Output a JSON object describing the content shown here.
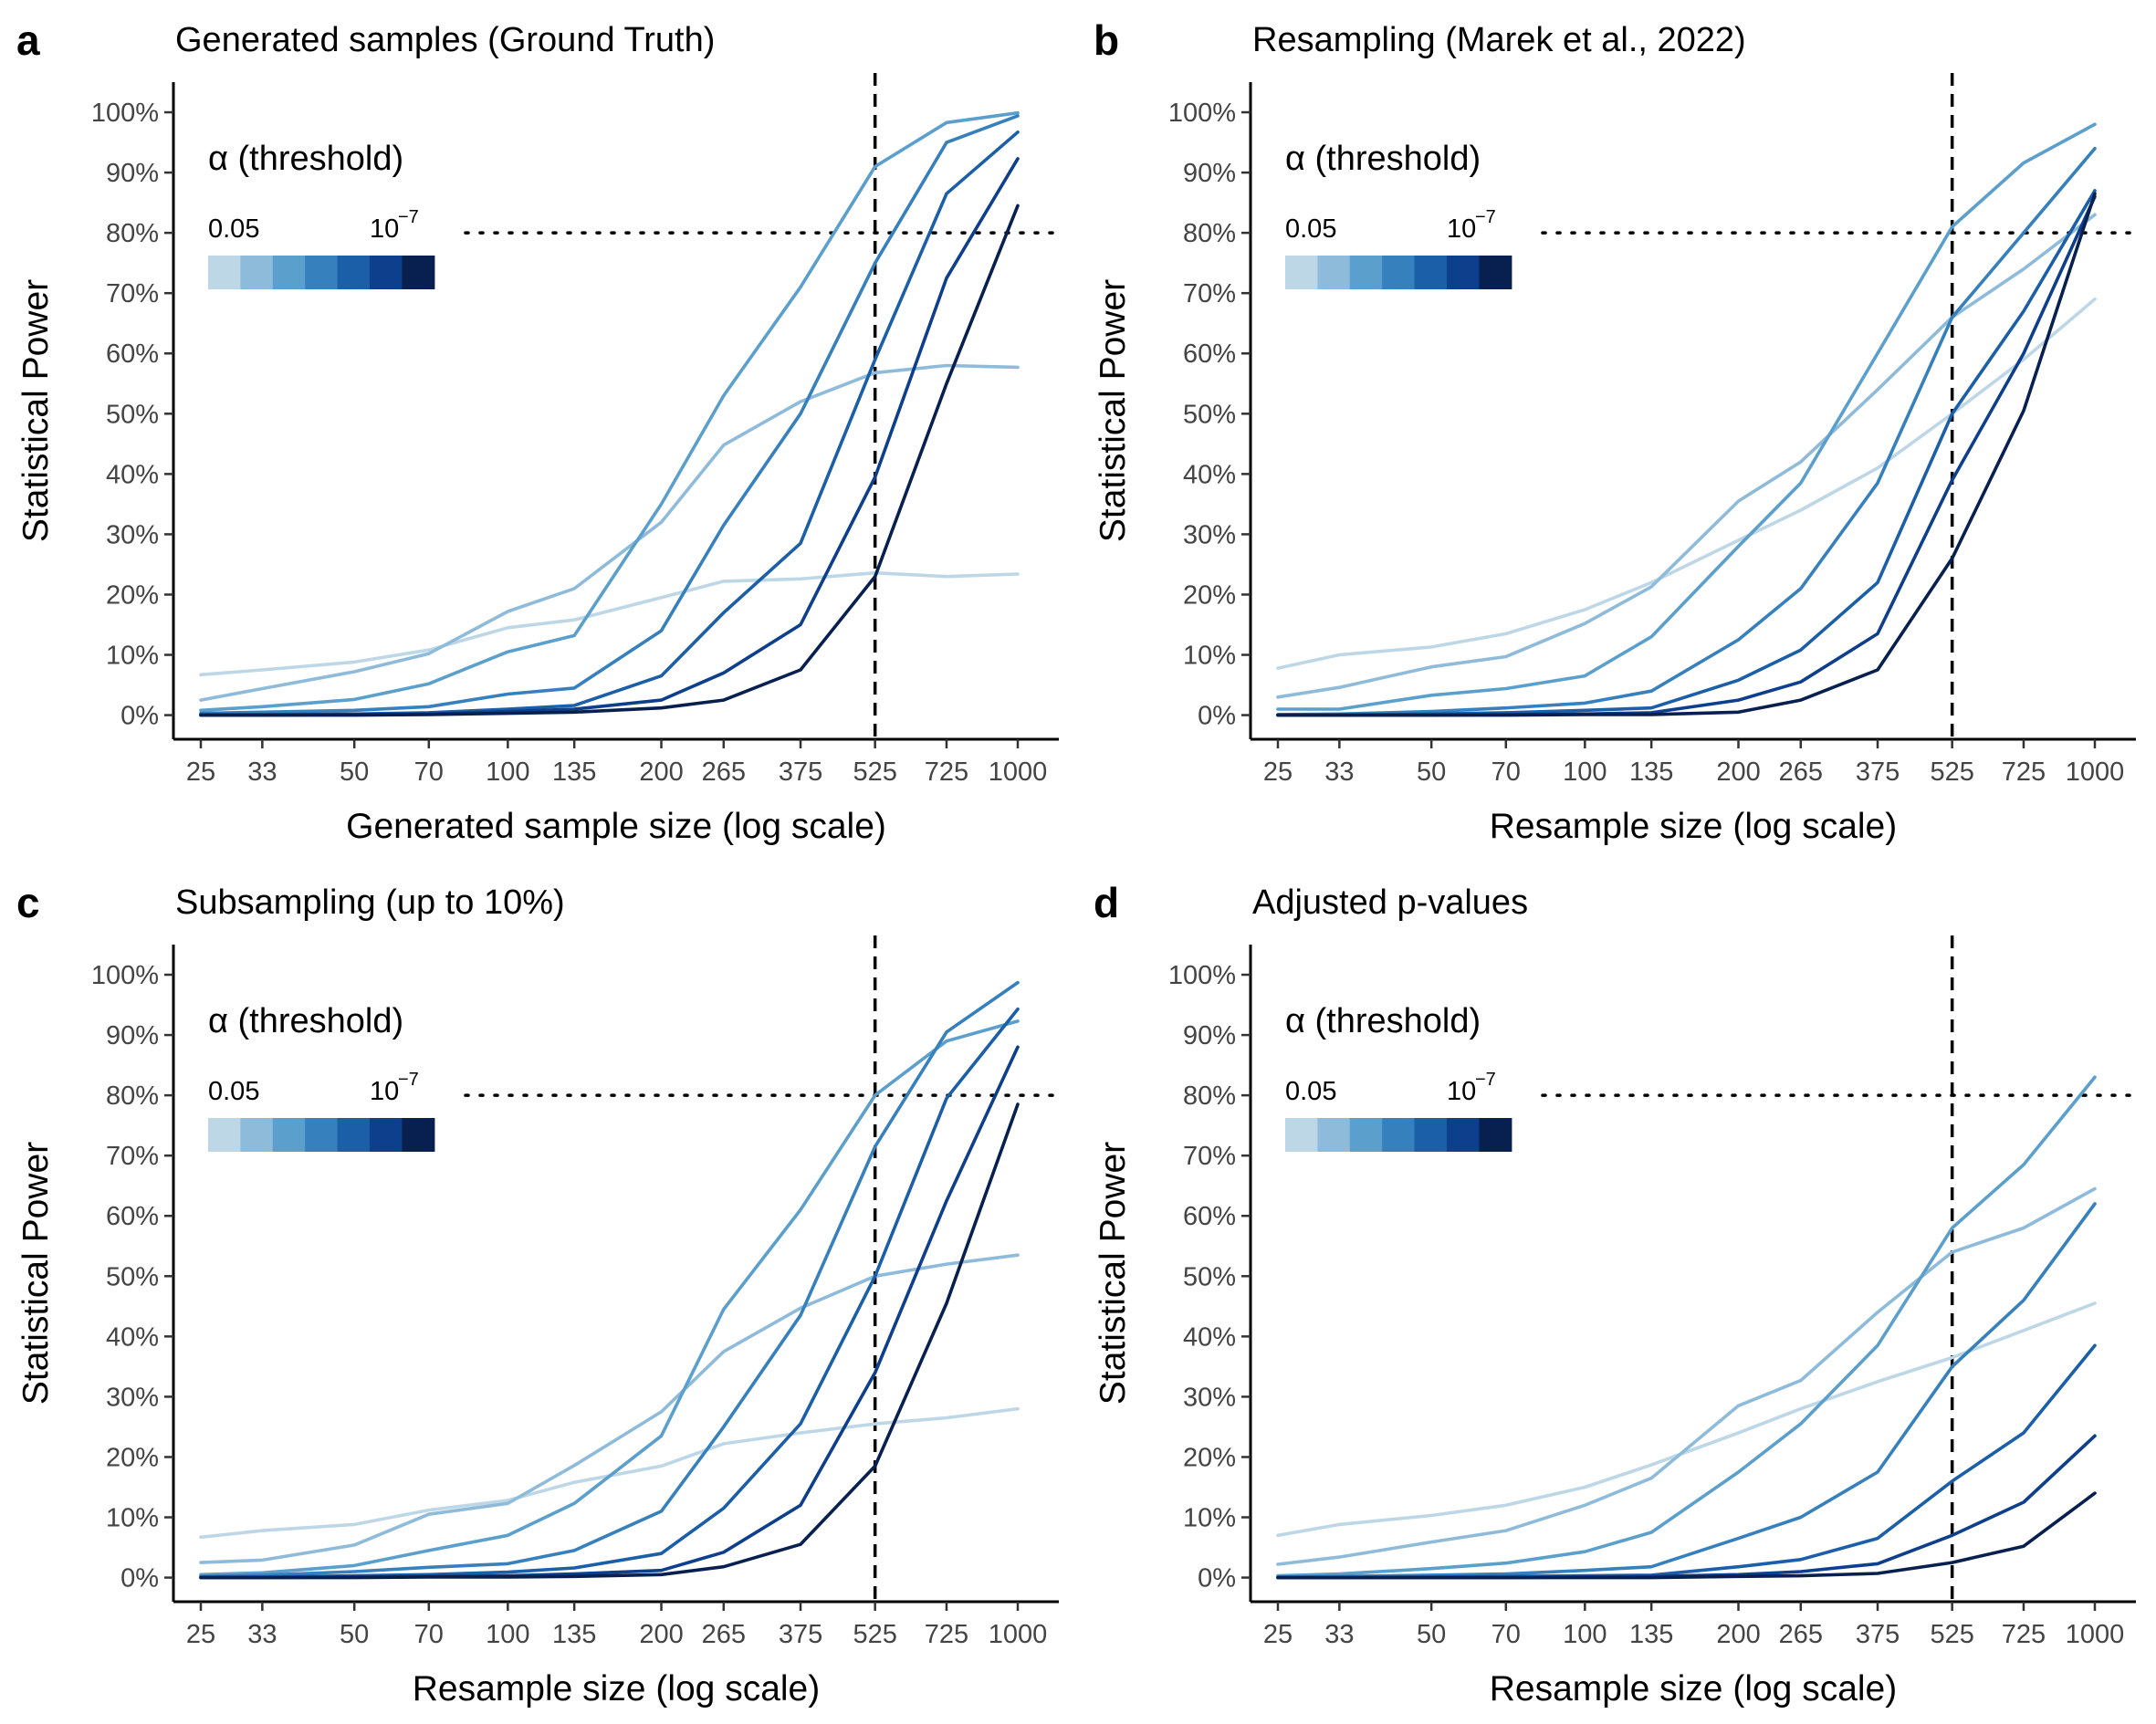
{
  "chart_data": [
    {
      "type": "line",
      "panel_letter": "a",
      "title": "Generated samples (Ground Truth)",
      "xlabel": "Generated sample size (log scale)",
      "ylabel": "Statistical Power",
      "x_scale": "log",
      "x": [
        25,
        33,
        50,
        70,
        100,
        135,
        200,
        265,
        375,
        525,
        725,
        1000
      ],
      "x_tick_labels": [
        "25",
        "33",
        "50",
        "70",
        "100",
        "135",
        "200",
        "265",
        "375",
        "525",
        "725",
        "1000"
      ],
      "y_ticks": [
        0,
        10,
        20,
        30,
        40,
        50,
        60,
        70,
        80,
        90,
        100
      ],
      "y_tick_labels": [
        "0%",
        "10%",
        "20%",
        "30%",
        "40%",
        "50%",
        "60%",
        "70%",
        "80%",
        "90%",
        "100%"
      ],
      "ylim": [
        -4,
        105
      ],
      "reference_lines": {
        "vertical_x": 525,
        "horizontal_y": 80
      },
      "legend": {
        "title": "α (threshold)",
        "low_label": "0.05",
        "high_base": "10",
        "high_exp": "−7",
        "placement": "top-left"
      },
      "series": [
        {
          "color": "#bdd7e7",
          "values": [
            6.7,
            7.5,
            8.8,
            10.8,
            14.5,
            15.8,
            19.5,
            22.2,
            22.6,
            23.6,
            23.0,
            23.4
          ]
        },
        {
          "color": "#8fbbda",
          "values": [
            2.5,
            4.4,
            7.2,
            10.2,
            17.2,
            21.0,
            32.0,
            44.8,
            52.0,
            56.8,
            58.0,
            57.7
          ]
        },
        {
          "color": "#5b9fcc",
          "values": [
            0.8,
            1.4,
            2.6,
            5.2,
            10.5,
            13.2,
            35.0,
            53.0,
            71.0,
            91.0,
            98.3,
            99.9
          ]
        },
        {
          "color": "#3680bd",
          "values": [
            0.3,
            0.5,
            0.8,
            1.4,
            3.5,
            4.5,
            14.0,
            31.5,
            50.0,
            75.0,
            95.0,
            99.4
          ]
        },
        {
          "color": "#1b5fa8",
          "values": [
            0.1,
            0.1,
            0.2,
            0.4,
            1.0,
            1.6,
            6.5,
            17.0,
            28.5,
            59.0,
            86.5,
            96.7
          ]
        },
        {
          "color": "#0e3f8c",
          "values": [
            0.0,
            0.0,
            0.1,
            0.2,
            0.6,
            1.0,
            2.5,
            7.0,
            15.0,
            39.5,
            72.5,
            92.3
          ]
        },
        {
          "color": "#08204f",
          "values": [
            0.0,
            0.0,
            0.0,
            0.1,
            0.3,
            0.5,
            1.2,
            2.5,
            7.5,
            23.0,
            55.0,
            84.5
          ]
        }
      ]
    },
    {
      "type": "line",
      "panel_letter": "b",
      "title": "Resampling (Marek et al., 2022)",
      "xlabel": "Resample size (log scale)",
      "ylabel": "Statistical Power",
      "x_scale": "log",
      "x": [
        25,
        33,
        50,
        70,
        100,
        135,
        200,
        265,
        375,
        525,
        725,
        1000
      ],
      "x_tick_labels": [
        "25",
        "33",
        "50",
        "70",
        "100",
        "135",
        "200",
        "265",
        "375",
        "525",
        "725",
        "1000"
      ],
      "y_ticks": [
        0,
        10,
        20,
        30,
        40,
        50,
        60,
        70,
        80,
        90,
        100
      ],
      "y_tick_labels": [
        "0%",
        "10%",
        "20%",
        "30%",
        "40%",
        "50%",
        "60%",
        "70%",
        "80%",
        "90%",
        "100%"
      ],
      "ylim": [
        -4,
        105
      ],
      "reference_lines": {
        "vertical_x": 525,
        "horizontal_y": 80
      },
      "legend": {
        "title": "α (threshold)",
        "low_label": "0.05",
        "high_base": "10",
        "high_exp": "−7",
        "placement": "top-left"
      },
      "series": [
        {
          "color": "#bdd7e7",
          "values": [
            7.8,
            10.0,
            11.3,
            13.5,
            17.5,
            22.0,
            29.0,
            34.0,
            41.0,
            50.0,
            59.0,
            69.0
          ]
        },
        {
          "color": "#8fbbda",
          "values": [
            3.0,
            4.6,
            8.0,
            9.7,
            15.2,
            21.3,
            35.5,
            42.0,
            54.0,
            66.0,
            74.0,
            83.0
          ]
        },
        {
          "color": "#5b9fcc",
          "values": [
            1.0,
            1.0,
            3.3,
            4.4,
            6.5,
            13.0,
            28.0,
            38.5,
            60.0,
            81.0,
            91.6,
            98.0
          ]
        },
        {
          "color": "#3680bd",
          "values": [
            0.1,
            0.2,
            0.6,
            1.2,
            2.0,
            4.0,
            12.5,
            21.0,
            38.5,
            66.0,
            80.0,
            94.0
          ]
        },
        {
          "color": "#1b5fa8",
          "values": [
            0.0,
            0.0,
            0.2,
            0.4,
            0.8,
            1.2,
            5.8,
            10.8,
            22.0,
            50.0,
            67.0,
            87.0
          ]
        },
        {
          "color": "#0e3f8c",
          "values": [
            0.0,
            0.0,
            0.0,
            0.1,
            0.2,
            0.4,
            2.5,
            5.5,
            13.5,
            39.0,
            60.0,
            86.0
          ]
        },
        {
          "color": "#08204f",
          "values": [
            0.0,
            0.0,
            0.0,
            0.0,
            0.1,
            0.1,
            0.5,
            2.5,
            7.5,
            26.0,
            50.5,
            86.5
          ]
        }
      ]
    },
    {
      "type": "line",
      "panel_letter": "c",
      "title": "Subsampling (up to 10%)",
      "xlabel": "Resample size (log scale)",
      "ylabel": "Statistical Power",
      "x_scale": "log",
      "x": [
        25,
        33,
        50,
        70,
        100,
        135,
        200,
        265,
        375,
        525,
        725,
        1000
      ],
      "x_tick_labels": [
        "25",
        "33",
        "50",
        "70",
        "100",
        "135",
        "200",
        "265",
        "375",
        "525",
        "725",
        "1000"
      ],
      "y_ticks": [
        0,
        10,
        20,
        30,
        40,
        50,
        60,
        70,
        80,
        90,
        100
      ],
      "y_tick_labels": [
        "0%",
        "10%",
        "20%",
        "30%",
        "40%",
        "50%",
        "60%",
        "70%",
        "80%",
        "90%",
        "100%"
      ],
      "ylim": [
        -4,
        105
      ],
      "reference_lines": {
        "vertical_x": 525,
        "horizontal_y": 80
      },
      "legend": {
        "title": "α (threshold)",
        "low_label": "0.05",
        "high_base": "10",
        "high_exp": "−7",
        "placement": "top-left"
      },
      "series": [
        {
          "color": "#bdd7e7",
          "values": [
            6.7,
            7.8,
            8.8,
            11.2,
            12.8,
            15.8,
            18.5,
            22.2,
            24.0,
            25.5,
            26.5,
            28.0
          ]
        },
        {
          "color": "#8fbbda",
          "values": [
            2.5,
            2.9,
            5.4,
            10.5,
            12.3,
            18.6,
            27.5,
            37.5,
            44.7,
            50.0,
            52.0,
            53.5
          ]
        },
        {
          "color": "#5b9fcc",
          "values": [
            0.5,
            0.8,
            2.0,
            4.5,
            7.0,
            12.3,
            23.5,
            44.5,
            61.0,
            80.0,
            89.0,
            92.3
          ]
        },
        {
          "color": "#3680bd",
          "values": [
            0.2,
            0.4,
            1.0,
            1.7,
            2.3,
            4.5,
            11.0,
            25.0,
            43.5,
            71.5,
            90.5,
            98.7
          ]
        },
        {
          "color": "#1b5fa8",
          "values": [
            0.1,
            0.1,
            0.3,
            0.5,
            0.9,
            1.6,
            4.0,
            11.5,
            25.5,
            50.0,
            79.5,
            94.3
          ]
        },
        {
          "color": "#0e3f8c",
          "values": [
            0.0,
            0.0,
            0.1,
            0.2,
            0.3,
            0.6,
            1.2,
            4.2,
            12.0,
            34.0,
            62.5,
            88.0
          ]
        },
        {
          "color": "#08204f",
          "values": [
            0.0,
            0.0,
            0.0,
            0.1,
            0.1,
            0.2,
            0.5,
            1.8,
            5.5,
            18.5,
            45.5,
            78.5
          ]
        }
      ]
    },
    {
      "type": "line",
      "panel_letter": "d",
      "title": "Adjusted p-values",
      "xlabel": "Resample size (log scale)",
      "ylabel": "Statistical Power",
      "x_scale": "log",
      "x": [
        25,
        33,
        50,
        70,
        100,
        135,
        200,
        265,
        375,
        525,
        725,
        1000
      ],
      "x_tick_labels": [
        "25",
        "33",
        "50",
        "70",
        "100",
        "135",
        "200",
        "265",
        "375",
        "525",
        "725",
        "1000"
      ],
      "y_ticks": [
        0,
        10,
        20,
        30,
        40,
        50,
        60,
        70,
        80,
        90,
        100
      ],
      "y_tick_labels": [
        "0%",
        "10%",
        "20%",
        "30%",
        "40%",
        "50%",
        "60%",
        "70%",
        "80%",
        "90%",
        "100%"
      ],
      "ylim": [
        -4,
        105
      ],
      "reference_lines": {
        "vertical_x": 525,
        "horizontal_y": 80
      },
      "legend": {
        "title": "α (threshold)",
        "low_label": "0.05",
        "high_base": "10",
        "high_exp": "−7",
        "placement": "top-left"
      },
      "series": [
        {
          "color": "#bdd7e7",
          "values": [
            7.0,
            8.8,
            10.3,
            12.0,
            15.0,
            18.7,
            24.0,
            28.0,
            32.5,
            36.5,
            41.0,
            45.5
          ]
        },
        {
          "color": "#8fbbda",
          "values": [
            2.2,
            3.4,
            5.9,
            7.8,
            12.0,
            16.5,
            28.5,
            32.7,
            44.0,
            54.0,
            58.0,
            64.5
          ]
        },
        {
          "color": "#5b9fcc",
          "values": [
            0.3,
            0.6,
            1.5,
            2.4,
            4.3,
            7.5,
            17.5,
            25.5,
            38.5,
            58.0,
            68.5,
            83.0
          ]
        },
        {
          "color": "#3680bd",
          "values": [
            0.1,
            0.2,
            0.4,
            0.6,
            1.2,
            1.8,
            6.5,
            10.0,
            17.5,
            35.0,
            46.0,
            62.0
          ]
        },
        {
          "color": "#1b5fa8",
          "values": [
            0.0,
            0.0,
            0.1,
            0.2,
            0.3,
            0.4,
            1.8,
            3.0,
            6.5,
            16.0,
            24.0,
            38.5
          ]
        },
        {
          "color": "#0e3f8c",
          "values": [
            0.0,
            0.0,
            0.0,
            0.0,
            0.1,
            0.2,
            0.5,
            1.0,
            2.3,
            7.0,
            12.5,
            23.5
          ]
        },
        {
          "color": "#08204f",
          "values": [
            0.0,
            0.0,
            0.0,
            0.0,
            0.0,
            0.0,
            0.2,
            0.3,
            0.7,
            2.5,
            5.2,
            14.0
          ]
        }
      ]
    }
  ]
}
